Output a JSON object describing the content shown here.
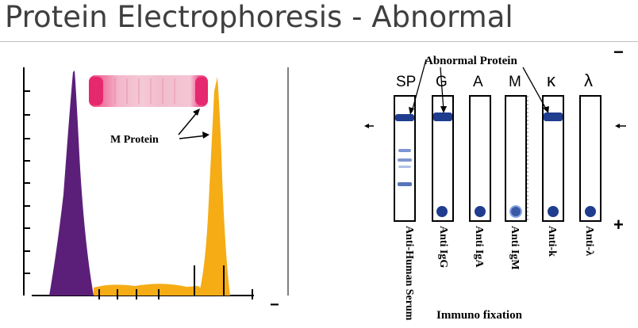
{
  "slide": {
    "title": "Protein Electrophoresis - Abnormal"
  },
  "densitometry": {
    "annotation": "M Protein",
    "cathode_sign": "−",
    "colors": {
      "albumin_peak": "#5c1f79",
      "m_protein_peak": "#f5ac15",
      "gel_band": "#e6286e"
    }
  },
  "immunofixation": {
    "callout": "Abnormal Protein",
    "top_sign": "−",
    "bottom_sign": "+",
    "caption": "Immuno fixation",
    "lanes": [
      {
        "letter": "SP",
        "label": "Anti-Human Serum"
      },
      {
        "letter": "G",
        "label": "Anti IgG"
      },
      {
        "letter": "A",
        "label": "Anti IgA"
      },
      {
        "letter": "M",
        "label": "Anti IgM"
      },
      {
        "letter": "κ",
        "label": "Anti-k"
      },
      {
        "letter": "λ",
        "label": "Anti-λ"
      }
    ],
    "colors": {
      "band": "#1f3c8f"
    }
  }
}
